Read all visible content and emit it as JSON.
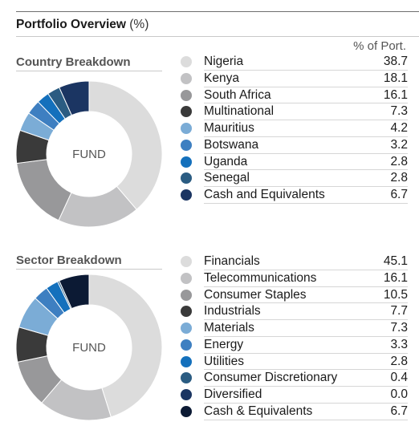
{
  "title": "Portfolio Overview",
  "title_unit": "(%)",
  "column_header": "% of Port.",
  "chart_data": [
    {
      "type": "pie",
      "title": "Country Breakdown",
      "center_label": "FUND",
      "categories": [
        "Nigeria",
        "Kenya",
        "South Africa",
        "Multinational",
        "Mauritius",
        "Botswana",
        "Uganda",
        "Senegal",
        "Cash and Equivalents"
      ],
      "values": [
        38.7,
        18.1,
        16.1,
        7.3,
        4.2,
        3.2,
        2.8,
        2.8,
        6.7
      ],
      "display_values": [
        "38.7",
        "18.1",
        "16.1",
        "7.3",
        "4.2",
        "3.2",
        "2.8",
        "2.8",
        "6.7"
      ],
      "colors": [
        "#dcdcdc",
        "#c2c2c4",
        "#98989a",
        "#3a3a3a",
        "#7bacd6",
        "#3e7fc1",
        "#1470bc",
        "#2b5c82",
        "#1b3562"
      ]
    },
    {
      "type": "pie",
      "title": "Sector Breakdown",
      "center_label": "FUND",
      "categories": [
        "Financials",
        "Telecommunications",
        "Consumer Staples",
        "Industrials",
        "Materials",
        "Energy",
        "Utilities",
        "Consumer Discretionary",
        "Diversified",
        "Cash & Equivalents"
      ],
      "values": [
        45.1,
        16.1,
        10.5,
        7.7,
        7.3,
        3.3,
        2.8,
        0.4,
        0.0,
        6.7
      ],
      "display_values": [
        "45.1",
        "16.1",
        "10.5",
        "7.7",
        "7.3",
        "3.3",
        "2.8",
        "0.4",
        "0.0",
        "6.7"
      ],
      "colors": [
        "#dcdcdc",
        "#c2c2c4",
        "#98989a",
        "#3a3a3a",
        "#7bacd6",
        "#3e7fc1",
        "#1470bc",
        "#2b5c82",
        "#1b3562",
        "#0c1a34"
      ]
    }
  ]
}
